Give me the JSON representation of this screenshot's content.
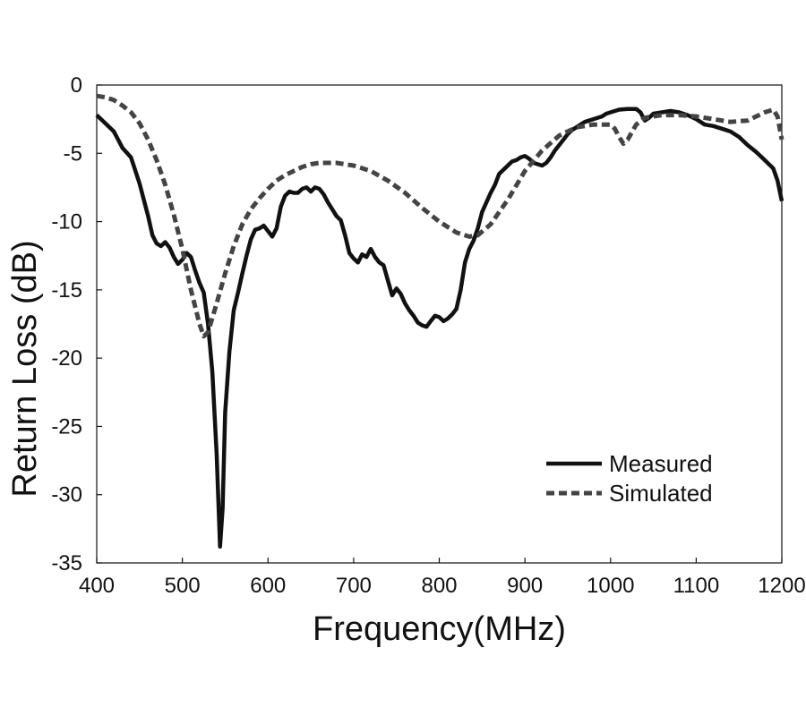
{
  "chart_data": {
    "type": "line",
    "title": "",
    "xlabel": "Frequency(MHz)",
    "ylabel": "Return Loss (dB)",
    "xlim": [
      400,
      1200
    ],
    "ylim": [
      -35,
      0
    ],
    "x_ticks": [
      400,
      500,
      600,
      700,
      800,
      900,
      1000,
      1100,
      1200
    ],
    "y_ticks": [
      0,
      -5,
      -10,
      -15,
      -20,
      -25,
      -30,
      -35
    ],
    "x_tick_labels": [
      "400",
      "500",
      "600",
      "700",
      "800",
      "900",
      "1000",
      "1100",
      "1200"
    ],
    "y_tick_labels": [
      "0",
      "-5",
      "-10",
      "-15",
      "-20",
      "-25",
      "-30",
      "-35"
    ],
    "grid": false,
    "legend_position": "bottom-right",
    "series": [
      {
        "name": "Measured",
        "color": "#111111",
        "style": "solid",
        "points": [
          [
            400,
            -2.2
          ],
          [
            410,
            -2.8
          ],
          [
            420,
            -3.4
          ],
          [
            430,
            -4.6
          ],
          [
            440,
            -5.3
          ],
          [
            450,
            -7.2
          ],
          [
            460,
            -9.6
          ],
          [
            465,
            -11.0
          ],
          [
            470,
            -11.6
          ],
          [
            475,
            -11.8
          ],
          [
            480,
            -11.5
          ],
          [
            485,
            -11.9
          ],
          [
            490,
            -12.6
          ],
          [
            495,
            -13.1
          ],
          [
            500,
            -12.8
          ],
          [
            505,
            -12.3
          ],
          [
            510,
            -12.6
          ],
          [
            515,
            -13.6
          ],
          [
            520,
            -14.5
          ],
          [
            525,
            -15.2
          ],
          [
            530,
            -17.5
          ],
          [
            535,
            -21.0
          ],
          [
            540,
            -27.0
          ],
          [
            544,
            -33.8
          ],
          [
            547,
            -31.0
          ],
          [
            550,
            -24.0
          ],
          [
            555,
            -19.5
          ],
          [
            560,
            -16.5
          ],
          [
            565,
            -15.2
          ],
          [
            570,
            -13.8
          ],
          [
            575,
            -12.5
          ],
          [
            580,
            -11.3
          ],
          [
            585,
            -10.6
          ],
          [
            590,
            -10.5
          ],
          [
            595,
            -10.3
          ],
          [
            600,
            -10.7
          ],
          [
            605,
            -11.1
          ],
          [
            610,
            -10.5
          ],
          [
            615,
            -8.9
          ],
          [
            620,
            -8.1
          ],
          [
            625,
            -7.8
          ],
          [
            630,
            -7.9
          ],
          [
            635,
            -7.9
          ],
          [
            640,
            -7.6
          ],
          [
            645,
            -7.5
          ],
          [
            650,
            -7.8
          ],
          [
            655,
            -7.5
          ],
          [
            660,
            -7.6
          ],
          [
            665,
            -8.0
          ],
          [
            670,
            -8.6
          ],
          [
            675,
            -9.1
          ],
          [
            680,
            -9.6
          ],
          [
            685,
            -9.9
          ],
          [
            690,
            -11.0
          ],
          [
            695,
            -12.3
          ],
          [
            700,
            -12.7
          ],
          [
            705,
            -13.0
          ],
          [
            710,
            -12.4
          ],
          [
            715,
            -12.6
          ],
          [
            720,
            -12.0
          ],
          [
            725,
            -12.6
          ],
          [
            730,
            -13.0
          ],
          [
            735,
            -13.2
          ],
          [
            740,
            -14.3
          ],
          [
            745,
            -15.4
          ],
          [
            750,
            -14.9
          ],
          [
            755,
            -15.3
          ],
          [
            760,
            -16.0
          ],
          [
            765,
            -16.5
          ],
          [
            770,
            -16.9
          ],
          [
            775,
            -17.4
          ],
          [
            780,
            -17.6
          ],
          [
            785,
            -17.7
          ],
          [
            790,
            -17.3
          ],
          [
            795,
            -16.9
          ],
          [
            800,
            -17.0
          ],
          [
            805,
            -17.3
          ],
          [
            810,
            -17.1
          ],
          [
            815,
            -16.8
          ],
          [
            820,
            -16.4
          ],
          [
            825,
            -15.0
          ],
          [
            830,
            -13.0
          ],
          [
            835,
            -12.0
          ],
          [
            840,
            -11.4
          ],
          [
            845,
            -10.5
          ],
          [
            850,
            -9.3
          ],
          [
            855,
            -8.6
          ],
          [
            860,
            -7.9
          ],
          [
            865,
            -7.3
          ],
          [
            870,
            -6.5
          ],
          [
            875,
            -6.2
          ],
          [
            880,
            -5.9
          ],
          [
            885,
            -5.6
          ],
          [
            890,
            -5.5
          ],
          [
            895,
            -5.3
          ],
          [
            900,
            -5.2
          ],
          [
            905,
            -5.4
          ],
          [
            910,
            -5.7
          ],
          [
            915,
            -5.8
          ],
          [
            920,
            -5.9
          ],
          [
            925,
            -5.7
          ],
          [
            930,
            -5.3
          ],
          [
            935,
            -4.8
          ],
          [
            940,
            -4.4
          ],
          [
            945,
            -4.0
          ],
          [
            950,
            -3.6
          ],
          [
            955,
            -3.3
          ],
          [
            960,
            -3.1
          ],
          [
            965,
            -2.9
          ],
          [
            970,
            -2.7
          ],
          [
            975,
            -2.6
          ],
          [
            980,
            -2.5
          ],
          [
            985,
            -2.4
          ],
          [
            990,
            -2.3
          ],
          [
            995,
            -2.1
          ],
          [
            1000,
            -2.0
          ],
          [
            1010,
            -1.8
          ],
          [
            1020,
            -1.75
          ],
          [
            1030,
            -1.75
          ],
          [
            1035,
            -2.0
          ],
          [
            1040,
            -2.6
          ],
          [
            1045,
            -2.4
          ],
          [
            1050,
            -2.1
          ],
          [
            1060,
            -2.0
          ],
          [
            1070,
            -1.9
          ],
          [
            1080,
            -2.0
          ],
          [
            1090,
            -2.2
          ],
          [
            1100,
            -2.5
          ],
          [
            1110,
            -2.9
          ],
          [
            1120,
            -3.0
          ],
          [
            1130,
            -3.2
          ],
          [
            1140,
            -3.4
          ],
          [
            1150,
            -3.8
          ],
          [
            1160,
            -4.4
          ],
          [
            1170,
            -4.9
          ],
          [
            1180,
            -5.5
          ],
          [
            1190,
            -6.1
          ],
          [
            1195,
            -7.0
          ],
          [
            1200,
            -8.5
          ]
        ]
      },
      {
        "name": "Simulated",
        "color": "#444444",
        "style": "dashed",
        "points": [
          [
            400,
            -0.8
          ],
          [
            410,
            -0.9
          ],
          [
            420,
            -1.1
          ],
          [
            430,
            -1.5
          ],
          [
            440,
            -2.0
          ],
          [
            450,
            -2.8
          ],
          [
            460,
            -4.0
          ],
          [
            470,
            -5.5
          ],
          [
            480,
            -7.3
          ],
          [
            490,
            -9.5
          ],
          [
            500,
            -12.0
          ],
          [
            510,
            -15.0
          ],
          [
            520,
            -17.5
          ],
          [
            525,
            -18.4
          ],
          [
            530,
            -18.1
          ],
          [
            540,
            -16.0
          ],
          [
            550,
            -13.8
          ],
          [
            560,
            -11.8
          ],
          [
            570,
            -10.2
          ],
          [
            580,
            -9.1
          ],
          [
            590,
            -8.3
          ],
          [
            600,
            -7.6
          ],
          [
            610,
            -7.0
          ],
          [
            620,
            -6.6
          ],
          [
            630,
            -6.3
          ],
          [
            640,
            -6.0
          ],
          [
            650,
            -5.8
          ],
          [
            660,
            -5.7
          ],
          [
            680,
            -5.7
          ],
          [
            700,
            -5.9
          ],
          [
            720,
            -6.3
          ],
          [
            740,
            -7.0
          ],
          [
            760,
            -7.9
          ],
          [
            780,
            -9.0
          ],
          [
            800,
            -10.0
          ],
          [
            820,
            -10.8
          ],
          [
            835,
            -11.1
          ],
          [
            845,
            -11.0
          ],
          [
            860,
            -10.2
          ],
          [
            880,
            -8.4
          ],
          [
            900,
            -6.3
          ],
          [
            920,
            -4.8
          ],
          [
            940,
            -3.7
          ],
          [
            960,
            -3.1
          ],
          [
            980,
            -2.9
          ],
          [
            1000,
            -2.9
          ],
          [
            1005,
            -3.2
          ],
          [
            1010,
            -3.8
          ],
          [
            1015,
            -4.3
          ],
          [
            1020,
            -4.0
          ],
          [
            1030,
            -2.9
          ],
          [
            1040,
            -2.4
          ],
          [
            1060,
            -2.2
          ],
          [
            1080,
            -2.2
          ],
          [
            1100,
            -2.3
          ],
          [
            1120,
            -2.5
          ],
          [
            1140,
            -2.7
          ],
          [
            1160,
            -2.6
          ],
          [
            1170,
            -2.3
          ],
          [
            1180,
            -2.0
          ],
          [
            1190,
            -1.8
          ],
          [
            1195,
            -2.3
          ],
          [
            1200,
            -4.0
          ]
        ]
      }
    ]
  }
}
